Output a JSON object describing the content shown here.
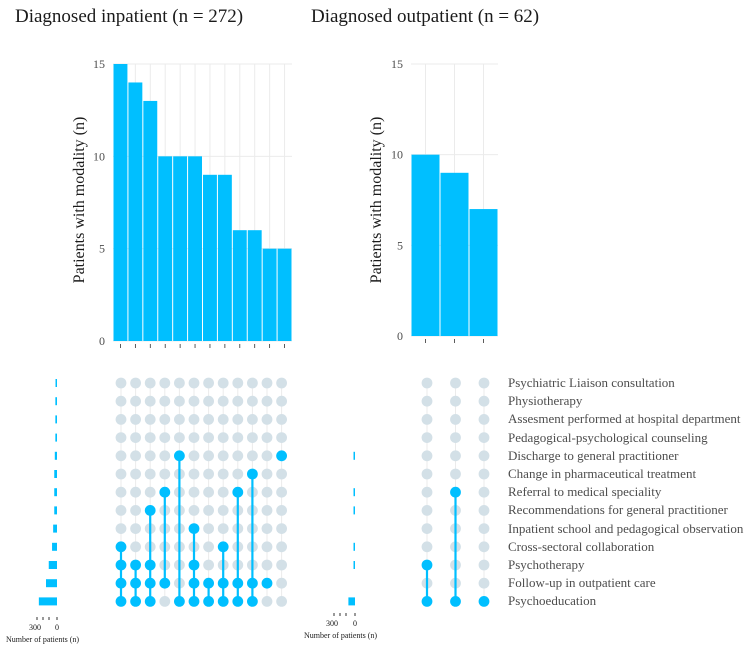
{
  "chart_data": [
    {
      "type": "bar",
      "title": "Diagnosed inpatient (n = 272)",
      "ylabel": "Patients with modality (n)",
      "ylim": [
        0,
        15
      ],
      "yticks": [
        0,
        5,
        10,
        15
      ],
      "values": [
        15,
        14,
        13,
        10,
        10,
        10,
        9,
        9,
        6,
        6,
        5,
        5
      ],
      "set_size_xlabel": "Number of patients (n)",
      "set_size_ticks": [
        "300",
        "0"
      ],
      "set_sizes": [
        2,
        3,
        3,
        3,
        4,
        5,
        5,
        5,
        7,
        9,
        15,
        20,
        33
      ],
      "intersections": [
        [
          "Psychoeducation",
          "Follow-up in outpatient care",
          "Psychotherapy",
          "Cross-sectoral collaboration"
        ],
        [
          "Psychoeducation",
          "Follow-up in outpatient care",
          "Psychotherapy"
        ],
        [
          "Psychoeducation",
          "Follow-up in outpatient care",
          "Psychotherapy",
          "Recommendations for general practitioner"
        ],
        [
          "Follow-up in outpatient care",
          "Referral to medical speciality"
        ],
        [
          "Psychoeducation",
          "Discharge to general practitioner"
        ],
        [
          "Psychoeducation",
          "Follow-up in outpatient care",
          "Psychotherapy",
          "Inpatient school and pedagogical observation"
        ],
        [
          "Psychoeducation",
          "Follow-up in outpatient care"
        ],
        [
          "Psychoeducation",
          "Follow-up in outpatient care",
          "Cross-sectoral collaboration"
        ],
        [
          "Psychoeducation",
          "Follow-up in outpatient care",
          "Referral to medical speciality"
        ],
        [
          "Psychoeducation",
          "Follow-up in outpatient care",
          "Change in pharmaceutical treatment"
        ],
        [
          "Follow-up in outpatient care"
        ],
        [
          "Discharge to general practitioner"
        ]
      ]
    },
    {
      "type": "bar",
      "title": "Diagnosed outpatient (n = 62)",
      "ylabel": "Patients with modality (n)",
      "ylim": [
        0,
        15
      ],
      "yticks": [
        0,
        5,
        10,
        15
      ],
      "values": [
        10,
        9,
        7
      ],
      "set_size_xlabel": "Number of patients (n)",
      "set_size_ticks": [
        "300",
        "0"
      ],
      "set_sizes": [
        0,
        0,
        0,
        0,
        1,
        0,
        2,
        1,
        0,
        1,
        2,
        0,
        12
      ],
      "intersections": [
        [
          "Psychoeducation",
          "Psychotherapy"
        ],
        [
          "Psychoeducation",
          "Referral to medical speciality"
        ],
        [
          "Psychoeducation"
        ]
      ]
    }
  ],
  "sets": [
    "Psychiatric Liaison consultation",
    "Physiotherapy",
    "Assesment performed at hospital department",
    "Pedagogical-psychological counseling",
    "Discharge to general practitioner",
    "Change in pharmaceutical treatment",
    "Referral to medical speciality",
    "Recommendations for general practitioner",
    "Inpatient school and pedagogical observation",
    "Cross-sectoral collaboration",
    "Psychotherapy",
    "Follow-up in outpatient care",
    "Psychoeducation"
  ],
  "colors": {
    "bar": "#00BFFF",
    "dot_active": "#00BFFF",
    "dot_inactive": "#D3E0E7",
    "grid": "#EBEBEB"
  }
}
